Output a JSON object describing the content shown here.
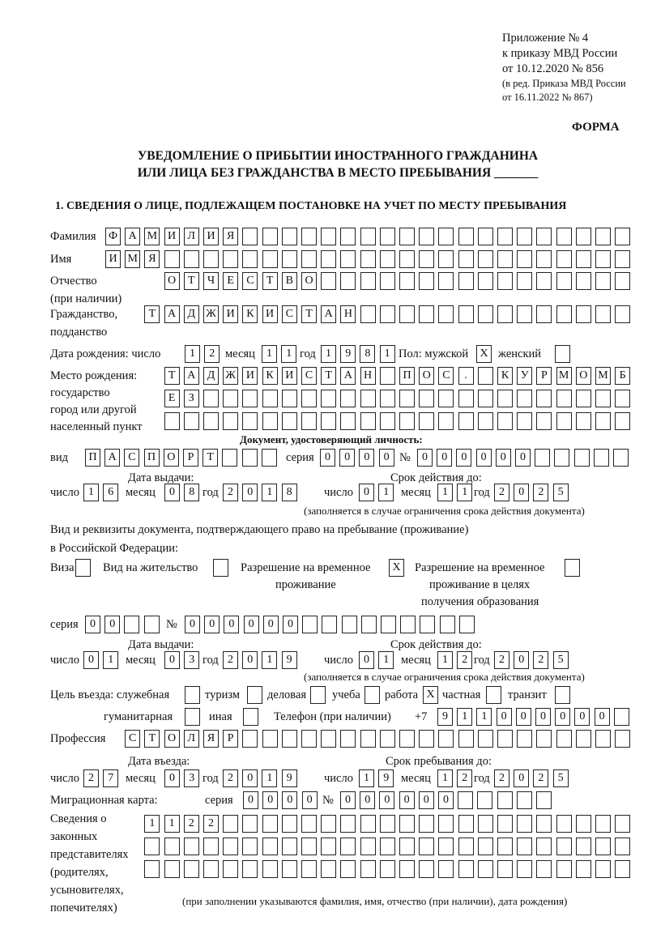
{
  "header": {
    "line1": "Приложение № 4",
    "line2": "к приказу МВД России",
    "line3": "от 10.12.2020 № 856",
    "line4": "(в ред. Приказа МВД России",
    "line5": "от 16.11.2022 № 867)",
    "forma": "ФОРМА"
  },
  "title": {
    "line1": "УВЕДОМЛЕНИЕ О ПРИБЫТИИ ИНОСТРАННОГО ГРАЖДАНИНА",
    "line2": "ИЛИ ЛИЦА БЕЗ ГРАЖДАНСТВА В МЕСТО ПРЕБЫВАНИЯ _______"
  },
  "section1": "1. СВЕДЕНИЯ О ЛИЦЕ, ПОДЛЕЖАЩЕМ ПОСТАНОВКЕ НА УЧЕТ ПО МЕСТУ ПРЕБЫВАНИЯ",
  "labels": {
    "surname": "Фамилия",
    "name": "Имя",
    "patronymic1": "Отчество",
    "patronymic2": "(при наличии)",
    "citizenship1": "Гражданство,",
    "citizenship2": "подданство",
    "birth_date": "Дата рождения:  число",
    "month": "месяц",
    "year": "год",
    "day": "число",
    "sex": "Пол: мужской",
    "female": "женский",
    "birth_place1": "Место рождения:",
    "birth_place2": "государство",
    "birth_place3": "город или другой",
    "birth_place4": "населенный пункт",
    "id_doc": "Документ, удостоверяющий личность:",
    "doc_type": "вид",
    "series": "серия",
    "number": "№",
    "issue_date": "Дата выдачи:",
    "valid_until": "Срок действия до:",
    "validity_note": "(заполняется в случае ограничения срока действия документа)",
    "stay_doc1": "Вид и реквизиты документа, подтверждающего право на пребывание (проживание)",
    "stay_doc2": "в Российской Федерации:",
    "visa": "Виза",
    "residence": "Вид на жительство",
    "temp_res1": "Разрешение на временное",
    "temp_res2": "проживание",
    "temp_edu1": "Разрешение на временное",
    "temp_edu2": "проживание в целях",
    "temp_edu3": "получения образования",
    "purpose": "Цель въезда: служебная",
    "tourism": "туризм",
    "business": "деловая",
    "study": "учеба",
    "work": "работа",
    "private": "частная",
    "transit": "транзит",
    "humanitarian": "гуманитарная",
    "other": "иная",
    "phone": "Телефон (при наличии)",
    "phone_prefix": "+7",
    "profession": "Профессия",
    "entry_date": "Дата въезда:",
    "stay_until": "Срок пребывания до:",
    "migration_card": "Миграционная карта:",
    "reps1": "Сведения о",
    "reps2": "законных",
    "reps3": "представителях",
    "reps4": "(родителях,",
    "reps5": "усыновителях,",
    "reps6": "попечителях)",
    "reps_note": "(при заполнении указываются фамилия, имя, отчество (при наличии), дата рождения)"
  },
  "fields": {
    "surname": "ФАМИЛИЯ",
    "name": "ИМЯ",
    "patronymic": "ОТЧЕСТВО",
    "citizenship": "ТАДЖИКИСТАН",
    "birth_day": "12",
    "birth_month": "11",
    "birth_year": "1981",
    "sex_male": "X",
    "sex_female": "",
    "birth_place_1": "ТАДЖИКИСТАН ПОС. КУРМОМБ",
    "birth_place_2": "ЕЗ",
    "birth_place_3": "",
    "doc_type": "ПАСПОРТ",
    "doc_series": "0000",
    "doc_number": "000000",
    "doc_issue_day": "16",
    "doc_issue_month": "08",
    "doc_issue_year": "2018",
    "doc_valid_day": "01",
    "doc_valid_month": "11",
    "doc_valid_year": "2025",
    "visa": "",
    "residence": "",
    "temp_res": "X",
    "temp_edu": "",
    "stay_series": "00",
    "stay_number": "000000",
    "stay_issue_day": "01",
    "stay_issue_month": "03",
    "stay_issue_year": "2019",
    "stay_valid_day": "01",
    "stay_valid_month": "12",
    "stay_valid_year": "2025",
    "p_service": "",
    "p_tourism": "",
    "p_business": "",
    "p_study": "",
    "p_work": "X",
    "p_private": "",
    "p_transit": "",
    "p_humanitarian": "",
    "p_other": "",
    "phone": "911000000",
    "profession": "СТОЛЯР",
    "entry_day": "27",
    "entry_month": "03",
    "entry_year": "2019",
    "stay_until_day": "19",
    "stay_until_month": "12",
    "stay_until_year": "2025",
    "mig_series": "0000",
    "mig_number": "000000",
    "reps_1": "1122",
    "reps_2": "",
    "reps_3": ""
  }
}
